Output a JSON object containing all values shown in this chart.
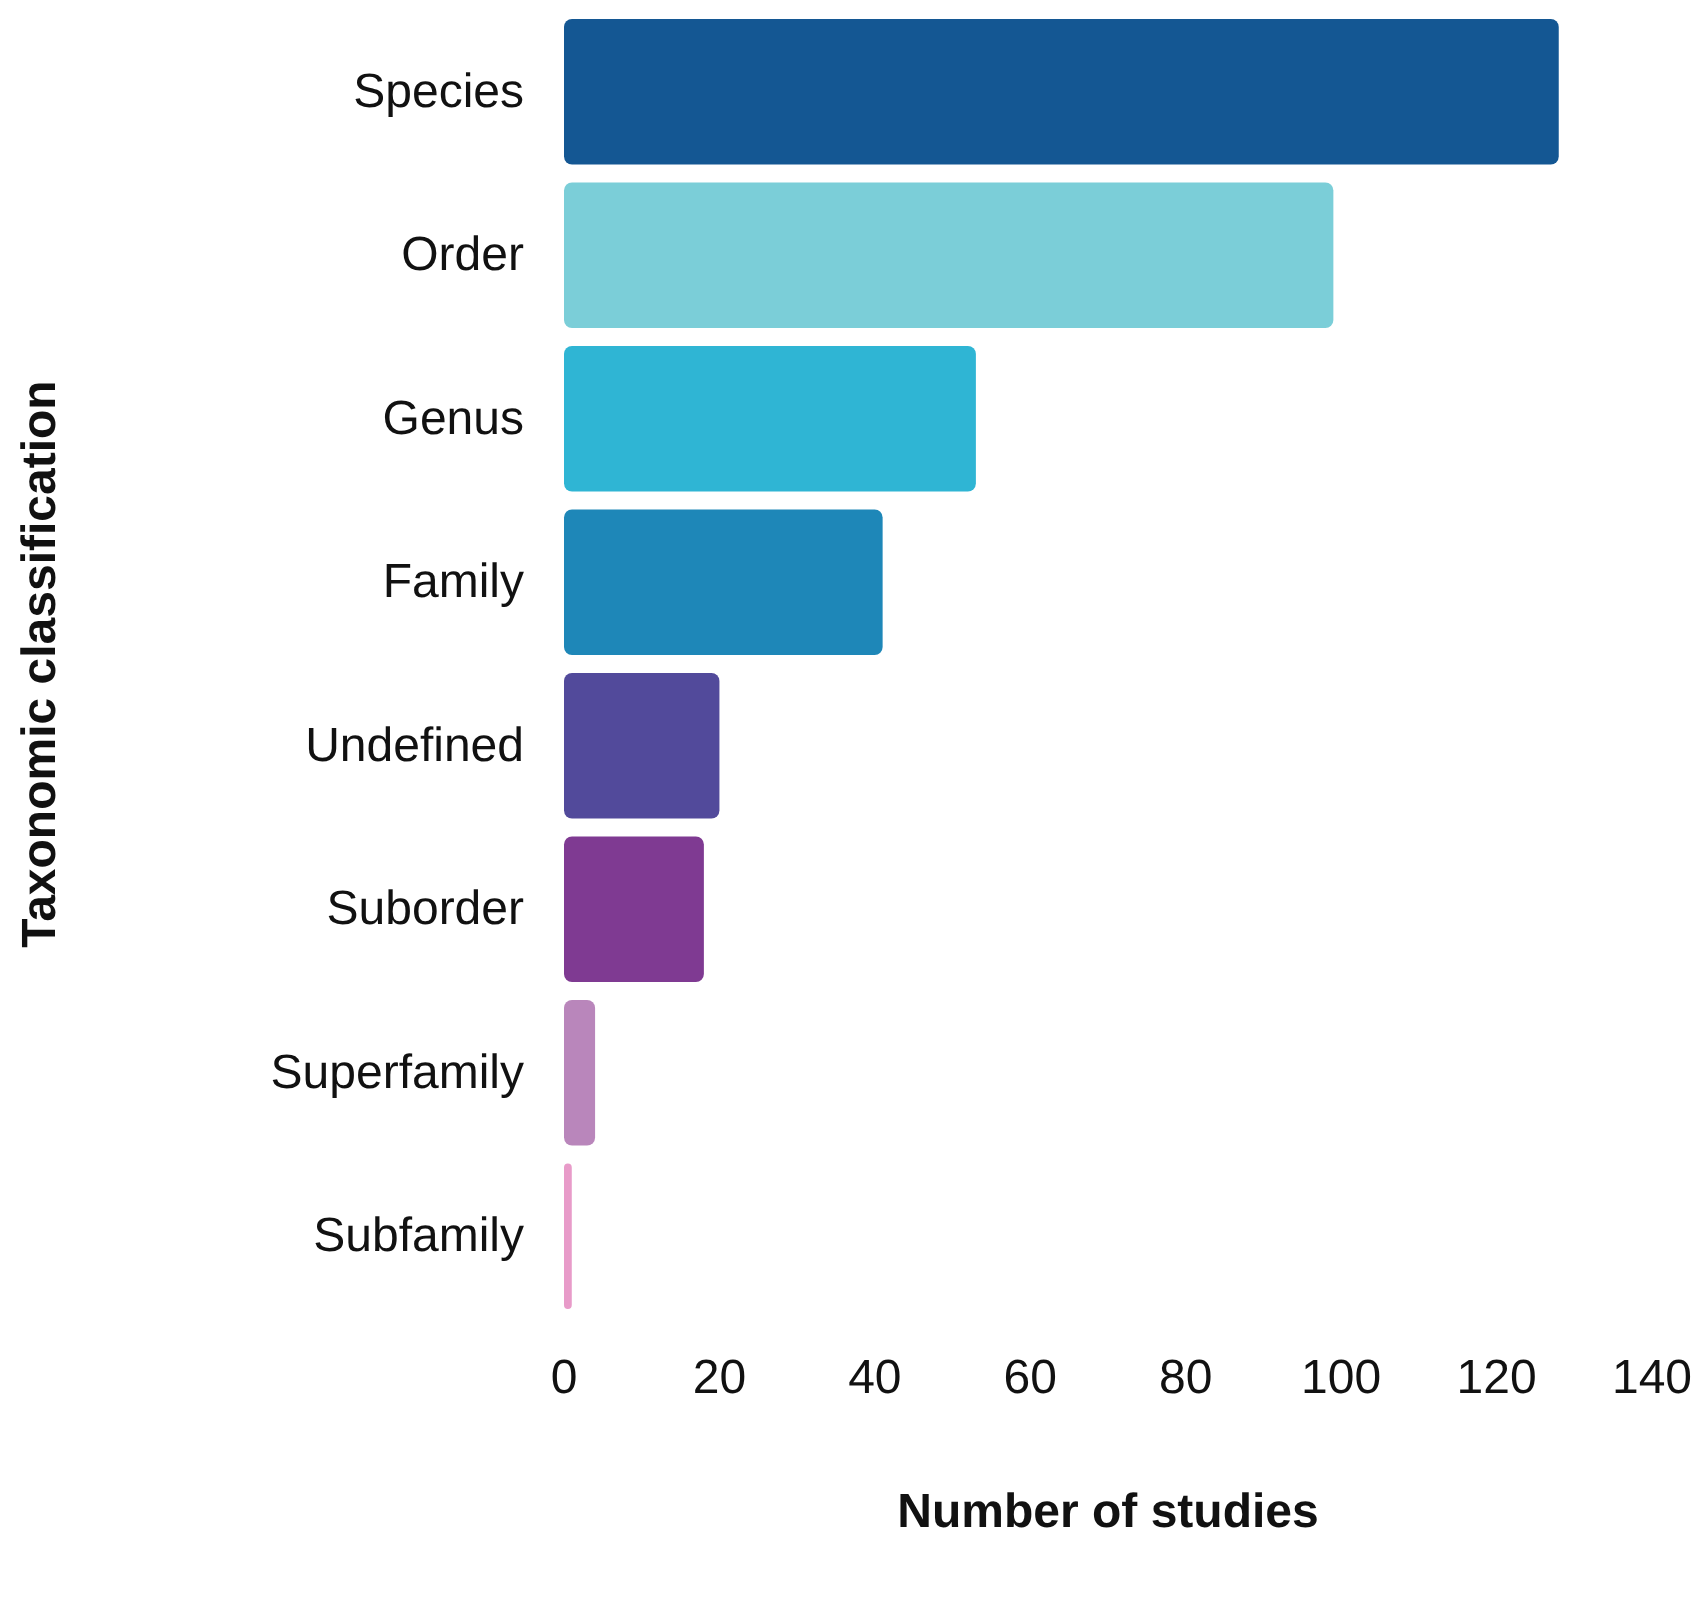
{
  "chart_data": {
    "type": "bar",
    "orientation": "horizontal",
    "xlabel": "Number of studies",
    "ylabel": "Taxonomic classification",
    "categories": [
      "Species",
      "Order",
      "Genus",
      "Family",
      "Undefined",
      "Suborder",
      "Superfamily",
      "Subfamily"
    ],
    "values": [
      128,
      99,
      53,
      41,
      20,
      18,
      4,
      1
    ],
    "colors": [
      "#145793",
      "#7bced8",
      "#2fb5d4",
      "#1e87b8",
      "#524a9b",
      "#7f3a92",
      "#b986bb",
      "#e89bc9"
    ],
    "xlim": [
      0,
      140
    ],
    "xticks": [
      0,
      20,
      40,
      60,
      80,
      100,
      120,
      140
    ],
    "grid": false
  }
}
